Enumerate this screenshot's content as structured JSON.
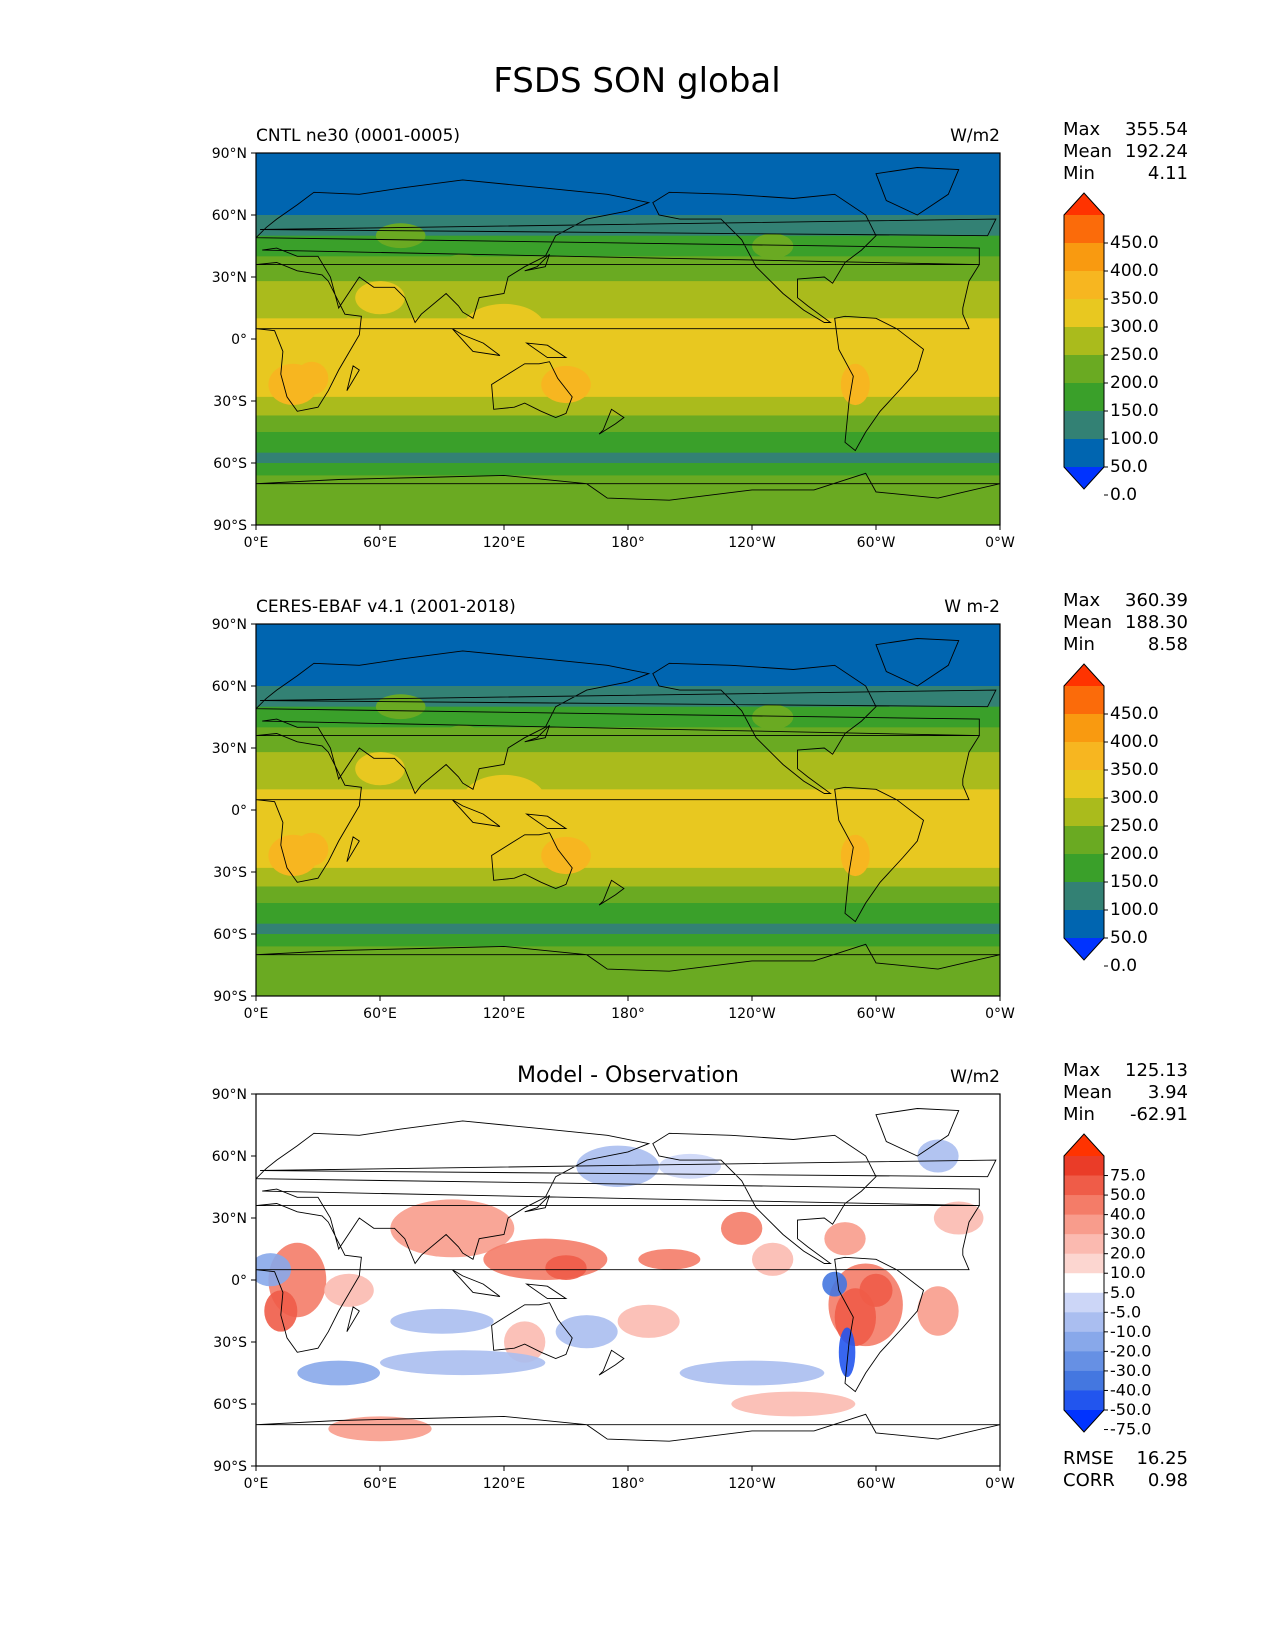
{
  "title": "FSDS SON global",
  "lat_ticks": [
    "90°N",
    "60°N",
    "30°N",
    "0°",
    "30°S",
    "60°S",
    "90°S"
  ],
  "lon_ticks": [
    "0°E",
    "60°E",
    "120°E",
    "180°",
    "120°W",
    "60°W",
    "0°W"
  ],
  "stat_labels": {
    "max": "Max",
    "mean": "Mean",
    "min": "Min",
    "rmse": "RMSE",
    "corr": "CORR"
  },
  "colors": {
    "abs_levels": [
      "#0033ff",
      "#0065b0",
      "#338174",
      "#3aa02a",
      "#6aaa22",
      "#aabb1c",
      "#e8c820",
      "#f7b620",
      "#f99a10",
      "#fb6b0a",
      "#ff3300"
    ],
    "diff_levels": [
      "#0033ff",
      "#2255ee",
      "#4477e0",
      "#6690e4",
      "#88a8ea",
      "#aabef0",
      "#ccd6f7",
      "#ffffff",
      "#fcd6d0",
      "#fbbab0",
      "#f89c8c",
      "#f47c68",
      "#ef5c48",
      "#ea3c28",
      "#ff3300"
    ],
    "land_line": "#000000"
  },
  "panels": [
    {
      "id": "model",
      "title_left": "CNTL ne30 (0001-0005)",
      "title_center": "",
      "units": "W/m2",
      "stats": {
        "max": "355.54",
        "mean": "192.24",
        "min": "4.11"
      },
      "colorbar": [
        "450.0",
        "400.0",
        "350.0",
        "300.0",
        "250.0",
        "200.0",
        "150.0",
        "100.0",
        "50.0",
        "0.0"
      ],
      "field": "abs"
    },
    {
      "id": "obs",
      "title_left": "CERES-EBAF v4.1 (2001-2018)",
      "title_center": "",
      "units": "W m-2",
      "stats": {
        "max": "360.39",
        "mean": "188.30",
        "min": "8.58"
      },
      "colorbar": [
        "450.0",
        "400.0",
        "350.0",
        "300.0",
        "250.0",
        "200.0",
        "150.0",
        "100.0",
        "50.0",
        "0.0"
      ],
      "field": "abs"
    },
    {
      "id": "diff",
      "title_left": "",
      "title_center": "Model - Observation",
      "units": "W/m2",
      "stats": {
        "max": "125.13",
        "mean": "3.94",
        "min": "-62.91"
      },
      "colorbar": [
        "75.0",
        "50.0",
        "40.0",
        "30.0",
        "20.0",
        "10.0",
        "5.0",
        "-5.0",
        "-10.0",
        "-20.0",
        "-30.0",
        "-40.0",
        "-50.0",
        "-75.0"
      ],
      "field": "diff",
      "metrics": {
        "rmse": "16.25",
        "corr": "0.98"
      }
    }
  ]
}
